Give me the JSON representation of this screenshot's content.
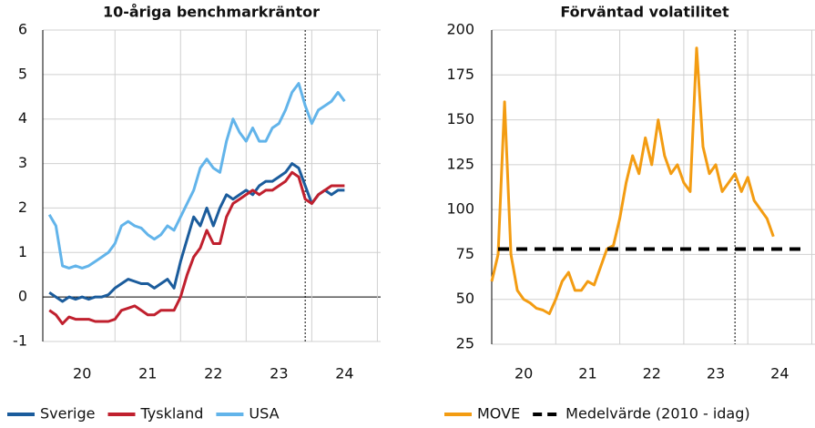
{
  "chart_data": [
    {
      "type": "line",
      "title": "10-åriga benchmarkräntor",
      "x": [
        2020.0,
        2020.1,
        2020.2,
        2020.3,
        2020.4,
        2020.5,
        2020.6,
        2020.7,
        2020.8,
        2020.9,
        2021.0,
        2021.1,
        2021.2,
        2021.3,
        2021.4,
        2021.5,
        2021.6,
        2021.7,
        2021.8,
        2021.9,
        2022.0,
        2022.1,
        2022.2,
        2022.3,
        2022.4,
        2022.5,
        2022.6,
        2022.7,
        2022.8,
        2022.9,
        2023.0,
        2023.1,
        2023.2,
        2023.3,
        2023.4,
        2023.5,
        2023.6,
        2023.7,
        2023.8,
        2023.9,
        2024.0,
        2024.1,
        2024.2,
        2024.3,
        2024.4,
        2024.5
      ],
      "series": [
        {
          "name": "Sverige",
          "color": "#1b5c9c",
          "values": [
            0.1,
            0.0,
            -0.1,
            0.0,
            -0.05,
            0.0,
            -0.05,
            0.0,
            0.0,
            0.05,
            0.2,
            0.3,
            0.4,
            0.35,
            0.3,
            0.3,
            0.2,
            0.3,
            0.4,
            0.2,
            0.8,
            1.3,
            1.8,
            1.6,
            2.0,
            1.6,
            2.0,
            2.3,
            2.2,
            2.3,
            2.4,
            2.3,
            2.5,
            2.6,
            2.6,
            2.7,
            2.8,
            3.0,
            2.9,
            2.5,
            2.1,
            2.3,
            2.4,
            2.3,
            2.4,
            2.4
          ]
        },
        {
          "name": "Tyskland",
          "color": "#c0202e",
          "values": [
            -0.3,
            -0.4,
            -0.6,
            -0.45,
            -0.5,
            -0.5,
            -0.5,
            -0.55,
            -0.55,
            -0.55,
            -0.5,
            -0.3,
            -0.25,
            -0.2,
            -0.3,
            -0.4,
            -0.4,
            -0.3,
            -0.3,
            -0.3,
            0.0,
            0.5,
            0.9,
            1.1,
            1.5,
            1.2,
            1.2,
            1.8,
            2.1,
            2.2,
            2.3,
            2.4,
            2.3,
            2.4,
            2.4,
            2.5,
            2.6,
            2.8,
            2.7,
            2.2,
            2.1,
            2.3,
            2.4,
            2.5,
            2.5,
            2.5
          ]
        },
        {
          "name": "USA",
          "color": "#62b4ea",
          "values": [
            1.85,
            1.6,
            0.7,
            0.65,
            0.7,
            0.65,
            0.7,
            0.8,
            0.9,
            1.0,
            1.2,
            1.6,
            1.7,
            1.6,
            1.55,
            1.4,
            1.3,
            1.4,
            1.6,
            1.5,
            1.8,
            2.1,
            2.4,
            2.9,
            3.1,
            2.9,
            2.8,
            3.5,
            4.0,
            3.7,
            3.5,
            3.8,
            3.5,
            3.5,
            3.8,
            3.9,
            4.2,
            4.6,
            4.8,
            4.3,
            3.9,
            4.2,
            4.3,
            4.4,
            4.6,
            4.4
          ]
        }
      ],
      "xlim": [
        2019.9,
        2025.05
      ],
      "xticks": [
        {
          "value": 2020.5,
          "label": "20"
        },
        {
          "value": 2021.5,
          "label": "21"
        },
        {
          "value": 2022.5,
          "label": "22"
        },
        {
          "value": 2023.5,
          "label": "23"
        },
        {
          "value": 2024.5,
          "label": "24"
        }
      ],
      "xgrid": [
        2021,
        2022,
        2023,
        2024,
        2025
      ],
      "vline": 2023.9,
      "ylim": [
        -1,
        6
      ],
      "yticks": [
        -1,
        0,
        1,
        2,
        3,
        4,
        5,
        6
      ],
      "grid": true
    },
    {
      "type": "line",
      "title": "Förväntad volatilitet",
      "series": [
        {
          "name": "MOVE",
          "color": "#f39c12",
          "x": [
            2020.0,
            2020.1,
            2020.2,
            2020.3,
            2020.4,
            2020.5,
            2020.6,
            2020.7,
            2020.8,
            2020.9,
            2021.0,
            2021.1,
            2021.2,
            2021.3,
            2021.4,
            2021.5,
            2021.6,
            2021.7,
            2021.8,
            2021.9,
            2022.0,
            2022.1,
            2022.2,
            2022.3,
            2022.4,
            2022.5,
            2022.6,
            2022.7,
            2022.8,
            2022.9,
            2023.0,
            2023.1,
            2023.2,
            2023.3,
            2023.4,
            2023.5,
            2023.6,
            2023.7,
            2023.8,
            2023.9,
            2024.0,
            2024.1,
            2024.2,
            2024.3,
            2024.4
          ],
          "values": [
            60,
            75,
            160,
            75,
            55,
            50,
            48,
            45,
            44,
            42,
            50,
            60,
            65,
            55,
            55,
            60,
            58,
            68,
            78,
            80,
            95,
            115,
            130,
            120,
            140,
            125,
            150,
            130,
            120,
            125,
            115,
            110,
            190,
            135,
            120,
            125,
            110,
            115,
            120,
            110,
            118,
            105,
            100,
            95,
            85
          ]
        },
        {
          "name": "Medelvärde (2010 - idag)",
          "color": "#000000",
          "dashed": true,
          "x": [
            2020.1,
            2024.85
          ],
          "values": [
            78,
            78
          ]
        }
      ],
      "xlim": [
        2020.0,
        2025.05
      ],
      "xticks": [
        {
          "value": 2020.5,
          "label": "20"
        },
        {
          "value": 2021.5,
          "label": "21"
        },
        {
          "value": 2022.5,
          "label": "22"
        },
        {
          "value": 2023.5,
          "label": "23"
        },
        {
          "value": 2024.5,
          "label": "24"
        }
      ],
      "xgrid": [
        2021,
        2022,
        2023,
        2024,
        2025
      ],
      "vline": 2023.8,
      "ylim": [
        25,
        200
      ],
      "yticks": [
        25,
        50,
        75,
        100,
        125,
        150,
        175,
        200
      ],
      "grid": true
    }
  ]
}
